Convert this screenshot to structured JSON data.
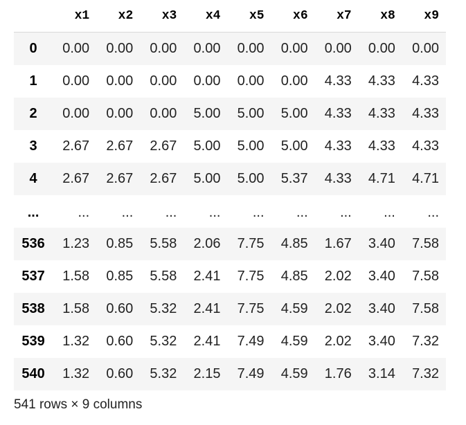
{
  "table": {
    "corner": "",
    "columns": [
      "x1",
      "x2",
      "x3",
      "x4",
      "x5",
      "x6",
      "x7",
      "x8",
      "x9"
    ],
    "rows": [
      {
        "index": "0",
        "values": [
          "0.00",
          "0.00",
          "0.00",
          "0.00",
          "0.00",
          "0.00",
          "0.00",
          "0.00",
          "0.00"
        ]
      },
      {
        "index": "1",
        "values": [
          "0.00",
          "0.00",
          "0.00",
          "0.00",
          "0.00",
          "0.00",
          "4.33",
          "4.33",
          "4.33"
        ]
      },
      {
        "index": "2",
        "values": [
          "0.00",
          "0.00",
          "0.00",
          "5.00",
          "5.00",
          "5.00",
          "4.33",
          "4.33",
          "4.33"
        ]
      },
      {
        "index": "3",
        "values": [
          "2.67",
          "2.67",
          "2.67",
          "5.00",
          "5.00",
          "5.00",
          "4.33",
          "4.33",
          "4.33"
        ]
      },
      {
        "index": "4",
        "values": [
          "2.67",
          "2.67",
          "2.67",
          "5.00",
          "5.00",
          "5.37",
          "4.33",
          "4.71",
          "4.71"
        ]
      },
      {
        "index": "...",
        "values": [
          "...",
          "...",
          "...",
          "...",
          "...",
          "...",
          "...",
          "...",
          "..."
        ]
      },
      {
        "index": "536",
        "values": [
          "1.23",
          "0.85",
          "5.58",
          "2.06",
          "7.75",
          "4.85",
          "1.67",
          "3.40",
          "7.58"
        ]
      },
      {
        "index": "537",
        "values": [
          "1.58",
          "0.85",
          "5.58",
          "2.41",
          "7.75",
          "4.85",
          "2.02",
          "3.40",
          "7.58"
        ]
      },
      {
        "index": "538",
        "values": [
          "1.58",
          "0.60",
          "5.32",
          "2.41",
          "7.75",
          "4.59",
          "2.02",
          "3.40",
          "7.58"
        ]
      },
      {
        "index": "539",
        "values": [
          "1.32",
          "0.60",
          "5.32",
          "2.41",
          "7.49",
          "4.59",
          "2.02",
          "3.40",
          "7.32"
        ]
      },
      {
        "index": "540",
        "values": [
          "1.32",
          "0.60",
          "5.32",
          "2.15",
          "7.49",
          "4.59",
          "1.76",
          "3.14",
          "7.32"
        ]
      }
    ]
  },
  "footer": {
    "shape_text": "541 rows × 9 columns"
  }
}
